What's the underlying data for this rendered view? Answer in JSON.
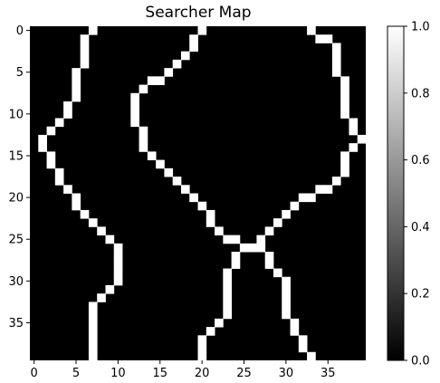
{
  "chart_data": {
    "type": "heatmap",
    "title": "Searcher Map",
    "xlabel": "",
    "ylabel": "",
    "rows": 40,
    "cols": 40,
    "x_ticks": [
      0,
      5,
      10,
      15,
      20,
      25,
      30,
      35
    ],
    "y_ticks": [
      0,
      5,
      10,
      15,
      20,
      25,
      30,
      35
    ],
    "colorbar": {
      "min": 0.0,
      "max": 1.0,
      "ticks": [
        "0.0",
        "0.2",
        "0.4",
        "0.6",
        "0.8",
        "1.0"
      ],
      "colormap": "gray"
    },
    "colors": {
      "low": "#000000",
      "high": "#ffffff"
    },
    "value_default": 0,
    "cells_value_1": [
      [
        0,
        7
      ],
      [
        0,
        20
      ],
      [
        0,
        33
      ],
      [
        1,
        6
      ],
      [
        1,
        19
      ],
      [
        1,
        34
      ],
      [
        1,
        35
      ],
      [
        2,
        6
      ],
      [
        2,
        19
      ],
      [
        2,
        36
      ],
      [
        3,
        6
      ],
      [
        3,
        18
      ],
      [
        3,
        36
      ],
      [
        4,
        6
      ],
      [
        4,
        17
      ],
      [
        4,
        36
      ],
      [
        5,
        5
      ],
      [
        5,
        16
      ],
      [
        5,
        36
      ],
      [
        6,
        5
      ],
      [
        6,
        14
      ],
      [
        6,
        15
      ],
      [
        6,
        37
      ],
      [
        7,
        5
      ],
      [
        7,
        13
      ],
      [
        7,
        37
      ],
      [
        8,
        5
      ],
      [
        8,
        12
      ],
      [
        8,
        37
      ],
      [
        9,
        4
      ],
      [
        9,
        12
      ],
      [
        9,
        37
      ],
      [
        10,
        4
      ],
      [
        10,
        12
      ],
      [
        10,
        37
      ],
      [
        11,
        3
      ],
      [
        11,
        12
      ],
      [
        11,
        38
      ],
      [
        12,
        2
      ],
      [
        12,
        13
      ],
      [
        12,
        38
      ],
      [
        13,
        1
      ],
      [
        13,
        13
      ],
      [
        13,
        39
      ],
      [
        14,
        1
      ],
      [
        14,
        13
      ],
      [
        14,
        38
      ],
      [
        15,
        2
      ],
      [
        15,
        14
      ],
      [
        15,
        37
      ],
      [
        16,
        2
      ],
      [
        16,
        15
      ],
      [
        16,
        37
      ],
      [
        17,
        3
      ],
      [
        17,
        16
      ],
      [
        17,
        37
      ],
      [
        18,
        3
      ],
      [
        18,
        17
      ],
      [
        18,
        36
      ],
      [
        19,
        4
      ],
      [
        19,
        18
      ],
      [
        19,
        34
      ],
      [
        19,
        35
      ],
      [
        20,
        5
      ],
      [
        20,
        19
      ],
      [
        20,
        32
      ],
      [
        20,
        33
      ],
      [
        21,
        5
      ],
      [
        21,
        20
      ],
      [
        21,
        31
      ],
      [
        22,
        6
      ],
      [
        22,
        21
      ],
      [
        22,
        30
      ],
      [
        23,
        7
      ],
      [
        23,
        21
      ],
      [
        23,
        29
      ],
      [
        24,
        8
      ],
      [
        24,
        22
      ],
      [
        24,
        28
      ],
      [
        25,
        9
      ],
      [
        25,
        23
      ],
      [
        25,
        24
      ],
      [
        25,
        27
      ],
      [
        26,
        10
      ],
      [
        26,
        25
      ],
      [
        26,
        26
      ],
      [
        26,
        27
      ],
      [
        27,
        10
      ],
      [
        27,
        24
      ],
      [
        27,
        28
      ],
      [
        28,
        10
      ],
      [
        28,
        24
      ],
      [
        28,
        28
      ],
      [
        29,
        10
      ],
      [
        29,
        23
      ],
      [
        29,
        29
      ],
      [
        30,
        10
      ],
      [
        30,
        23
      ],
      [
        30,
        30
      ],
      [
        31,
        9
      ],
      [
        31,
        23
      ],
      [
        31,
        30
      ],
      [
        32,
        8
      ],
      [
        32,
        23
      ],
      [
        32,
        30
      ],
      [
        33,
        7
      ],
      [
        33,
        23
      ],
      [
        33,
        30
      ],
      [
        34,
        7
      ],
      [
        34,
        23
      ],
      [
        34,
        30
      ],
      [
        35,
        7
      ],
      [
        35,
        22
      ],
      [
        35,
        31
      ],
      [
        36,
        7
      ],
      [
        36,
        21
      ],
      [
        36,
        31
      ],
      [
        37,
        7
      ],
      [
        37,
        20
      ],
      [
        37,
        32
      ],
      [
        38,
        7
      ],
      [
        38,
        20
      ],
      [
        38,
        32
      ],
      [
        39,
        7
      ],
      [
        39,
        20
      ],
      [
        39,
        33
      ]
    ]
  }
}
